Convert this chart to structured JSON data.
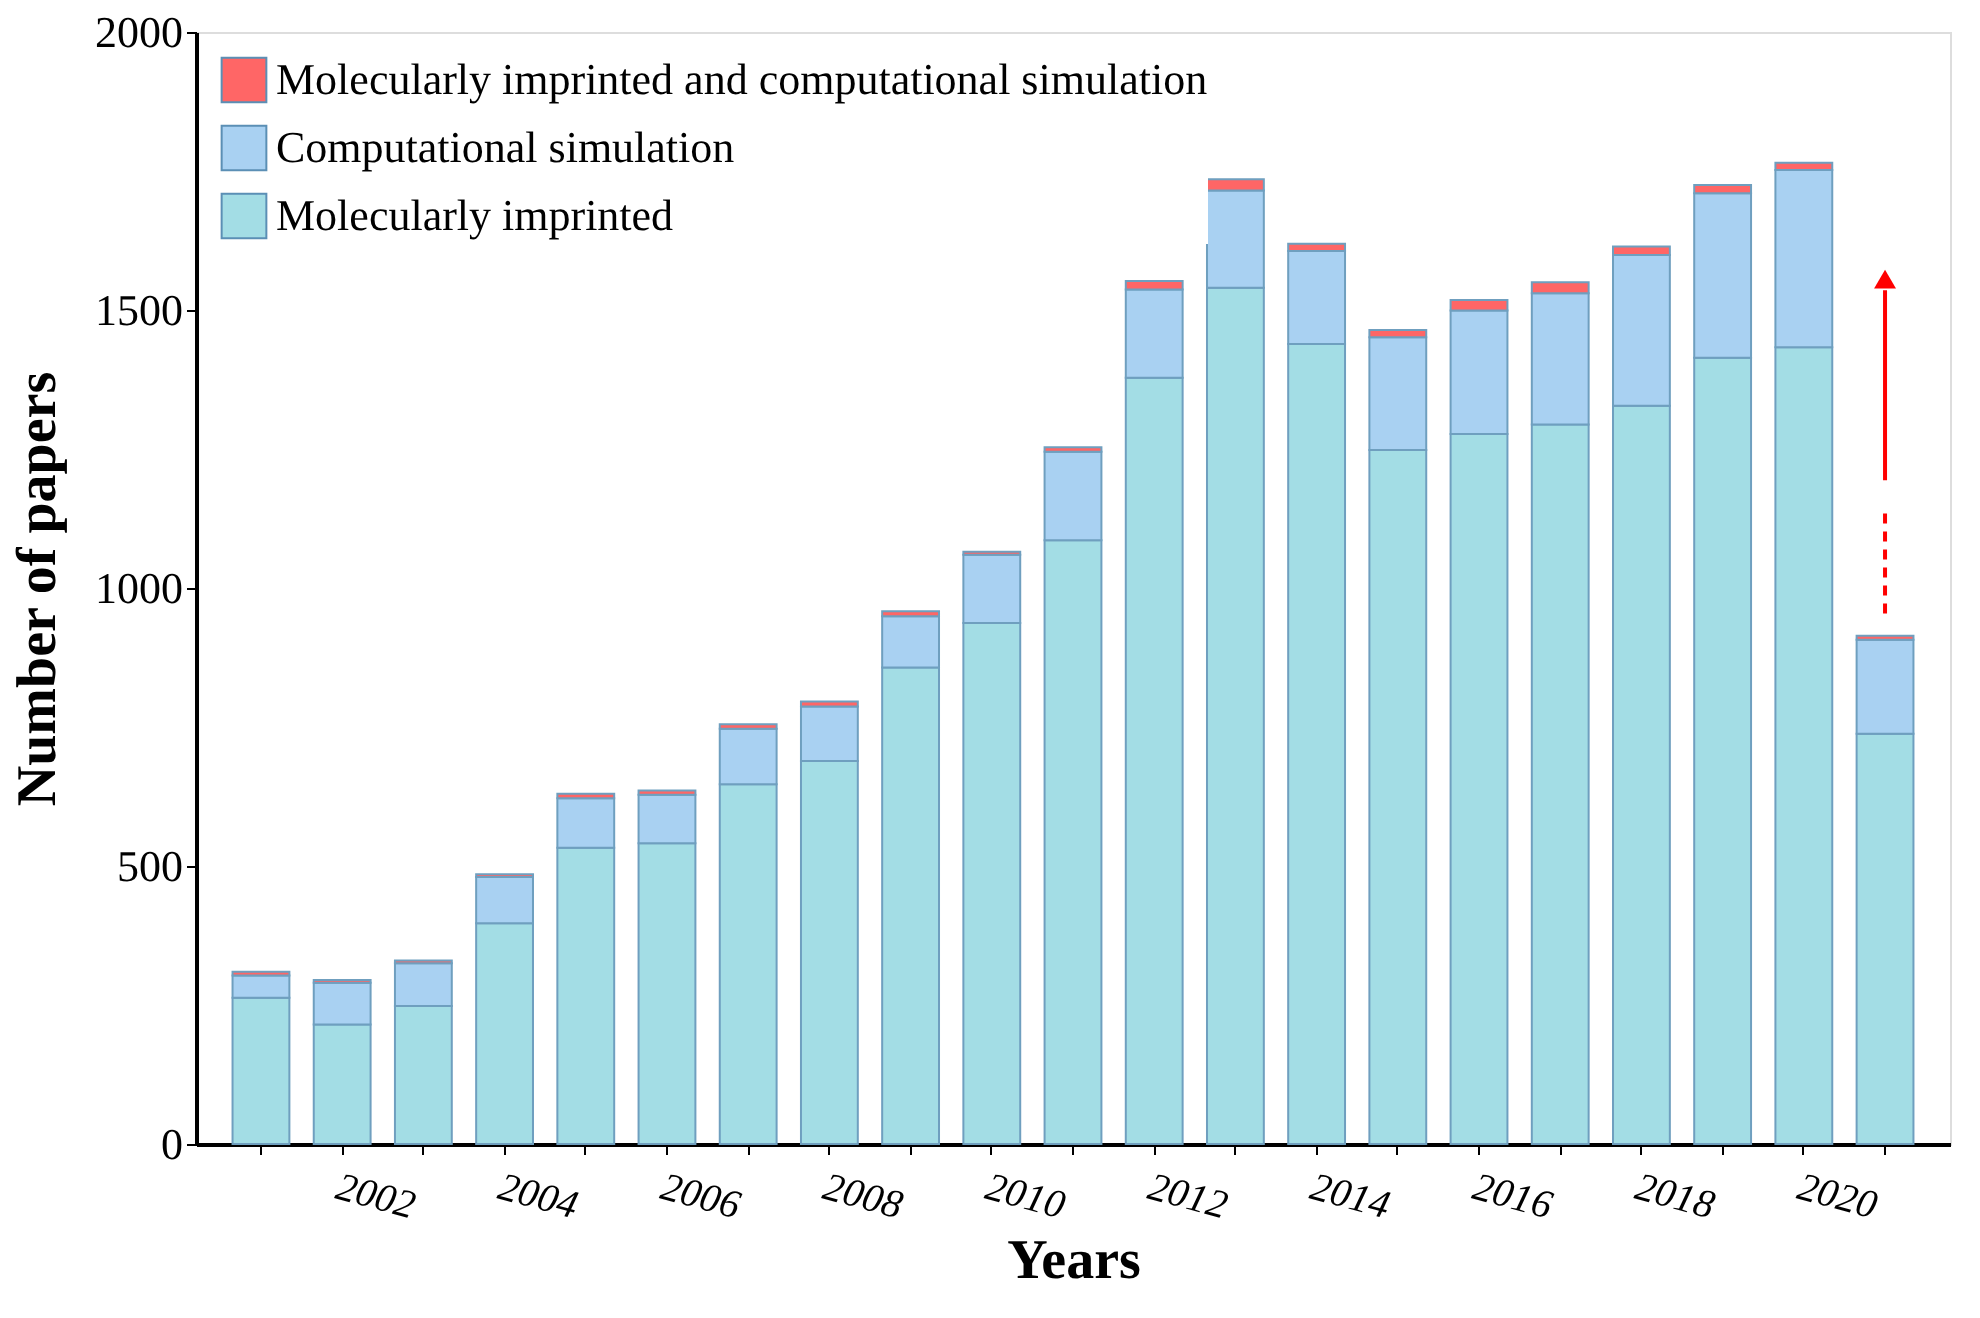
{
  "chart_data": {
    "type": "bar",
    "stacked": true,
    "xlabel": "Years",
    "ylabel": "Number of papers",
    "categories": [
      null,
      "2002",
      null,
      "2004",
      null,
      "2006",
      null,
      "2008",
      null,
      "2010",
      null,
      "2012",
      null,
      "2014",
      null,
      "2016",
      null,
      "2018",
      null,
      "2020",
      null
    ],
    "series": [
      {
        "name": "Molecularly imprinted",
        "color": "#a3dde5",
        "values": [
          263,
          215,
          248,
          397,
          533,
          541,
          647,
          689,
          857,
          937,
          1086,
          1378,
          1540,
          1439,
          1248,
          1277,
          1294,
          1328,
          1414,
          1433,
          738
        ]
      },
      {
        "name": "Computational simulation",
        "color": "#a9d1f2",
        "values": [
          40,
          75,
          77,
          83,
          89,
          87,
          100,
          98,
          92,
          123,
          159,
          159,
          175,
          167,
          203,
          222,
          236,
          271,
          296,
          319,
          169
        ]
      },
      {
        "name": "Molecularly imprinted and computational simulation",
        "color": "#ff6666",
        "values": [
          7,
          5,
          5,
          5,
          8,
          8,
          8,
          9,
          9,
          5,
          8,
          15,
          20,
          13,
          13,
          19,
          20,
          15,
          15,
          13,
          7
        ]
      }
    ],
    "ylim": [
      0,
      2000
    ],
    "yticks": [
      0,
      500,
      1000,
      1500,
      2000
    ],
    "grid": false,
    "legend": "top left"
  }
}
